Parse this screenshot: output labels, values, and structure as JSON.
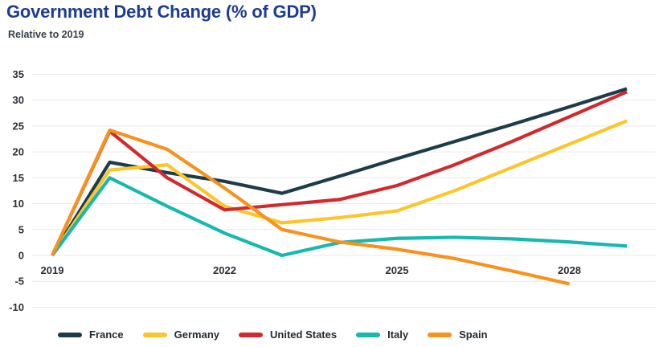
{
  "header": {
    "title": "Government Debt Change (% of GDP)",
    "subtitle": "Relative to 2019"
  },
  "colors": {
    "title_blue": "#1e3d8f",
    "subtitle_dark": "#37424a",
    "axis_text": "#2b3038",
    "gridline": "#e9e9ed"
  },
  "chart_data": {
    "type": "line",
    "title": "Government Debt Change (% of GDP)",
    "subtitle": "Relative to 2019",
    "xlabel": "",
    "ylabel": "",
    "xlim": [
      2019,
      2029
    ],
    "ylim": [
      -10,
      35
    ],
    "xticks": [
      2019,
      2022,
      2025,
      2028
    ],
    "yticks": [
      35,
      30,
      25,
      20,
      15,
      10,
      5,
      0,
      -5,
      -10
    ],
    "grid": "horizontal",
    "legend_position": "bottom",
    "series": [
      {
        "name": "France",
        "color": "#1d3c4a",
        "x": [
          2019,
          2020,
          2021,
          2022,
          2023,
          2024,
          2025,
          2026,
          2027,
          2028,
          2029
        ],
        "values": [
          0,
          18,
          16,
          14.3,
          12,
          15.3,
          18.7,
          22,
          25.3,
          28.7,
          32.2
        ]
      },
      {
        "name": "Germany",
        "color": "#fcc52b",
        "x": [
          2019,
          2020,
          2021,
          2022,
          2023,
          2024,
          2025,
          2026,
          2027,
          2028,
          2029
        ],
        "values": [
          0,
          16.5,
          17.5,
          9.5,
          6.3,
          7.3,
          8.6,
          12.5,
          17,
          21.5,
          26
        ]
      },
      {
        "name": "United States",
        "color": "#d0292e",
        "x": [
          2019,
          2020,
          2021,
          2022,
          2023,
          2024,
          2025,
          2026,
          2027,
          2028,
          2029
        ],
        "values": [
          0,
          24,
          15,
          8.8,
          9.8,
          10.8,
          13.5,
          17.5,
          22,
          26.8,
          31.6
        ]
      },
      {
        "name": "Italy",
        "color": "#16b8af",
        "x": [
          2019,
          2020,
          2021,
          2022,
          2023,
          2024,
          2025,
          2026,
          2027,
          2028,
          2029
        ],
        "values": [
          0,
          15,
          9.5,
          4.3,
          0,
          2.5,
          3.3,
          3.5,
          3.2,
          2.6,
          1.8
        ]
      },
      {
        "name": "Spain",
        "color": "#f6921e",
        "x": [
          2019,
          2020,
          2021,
          2022,
          2023,
          2024,
          2025,
          2026,
          2027,
          2028
        ],
        "values": [
          0,
          24.2,
          20.5,
          13,
          5,
          2.6,
          1.2,
          -0.6,
          -3,
          -5.5
        ]
      }
    ]
  }
}
